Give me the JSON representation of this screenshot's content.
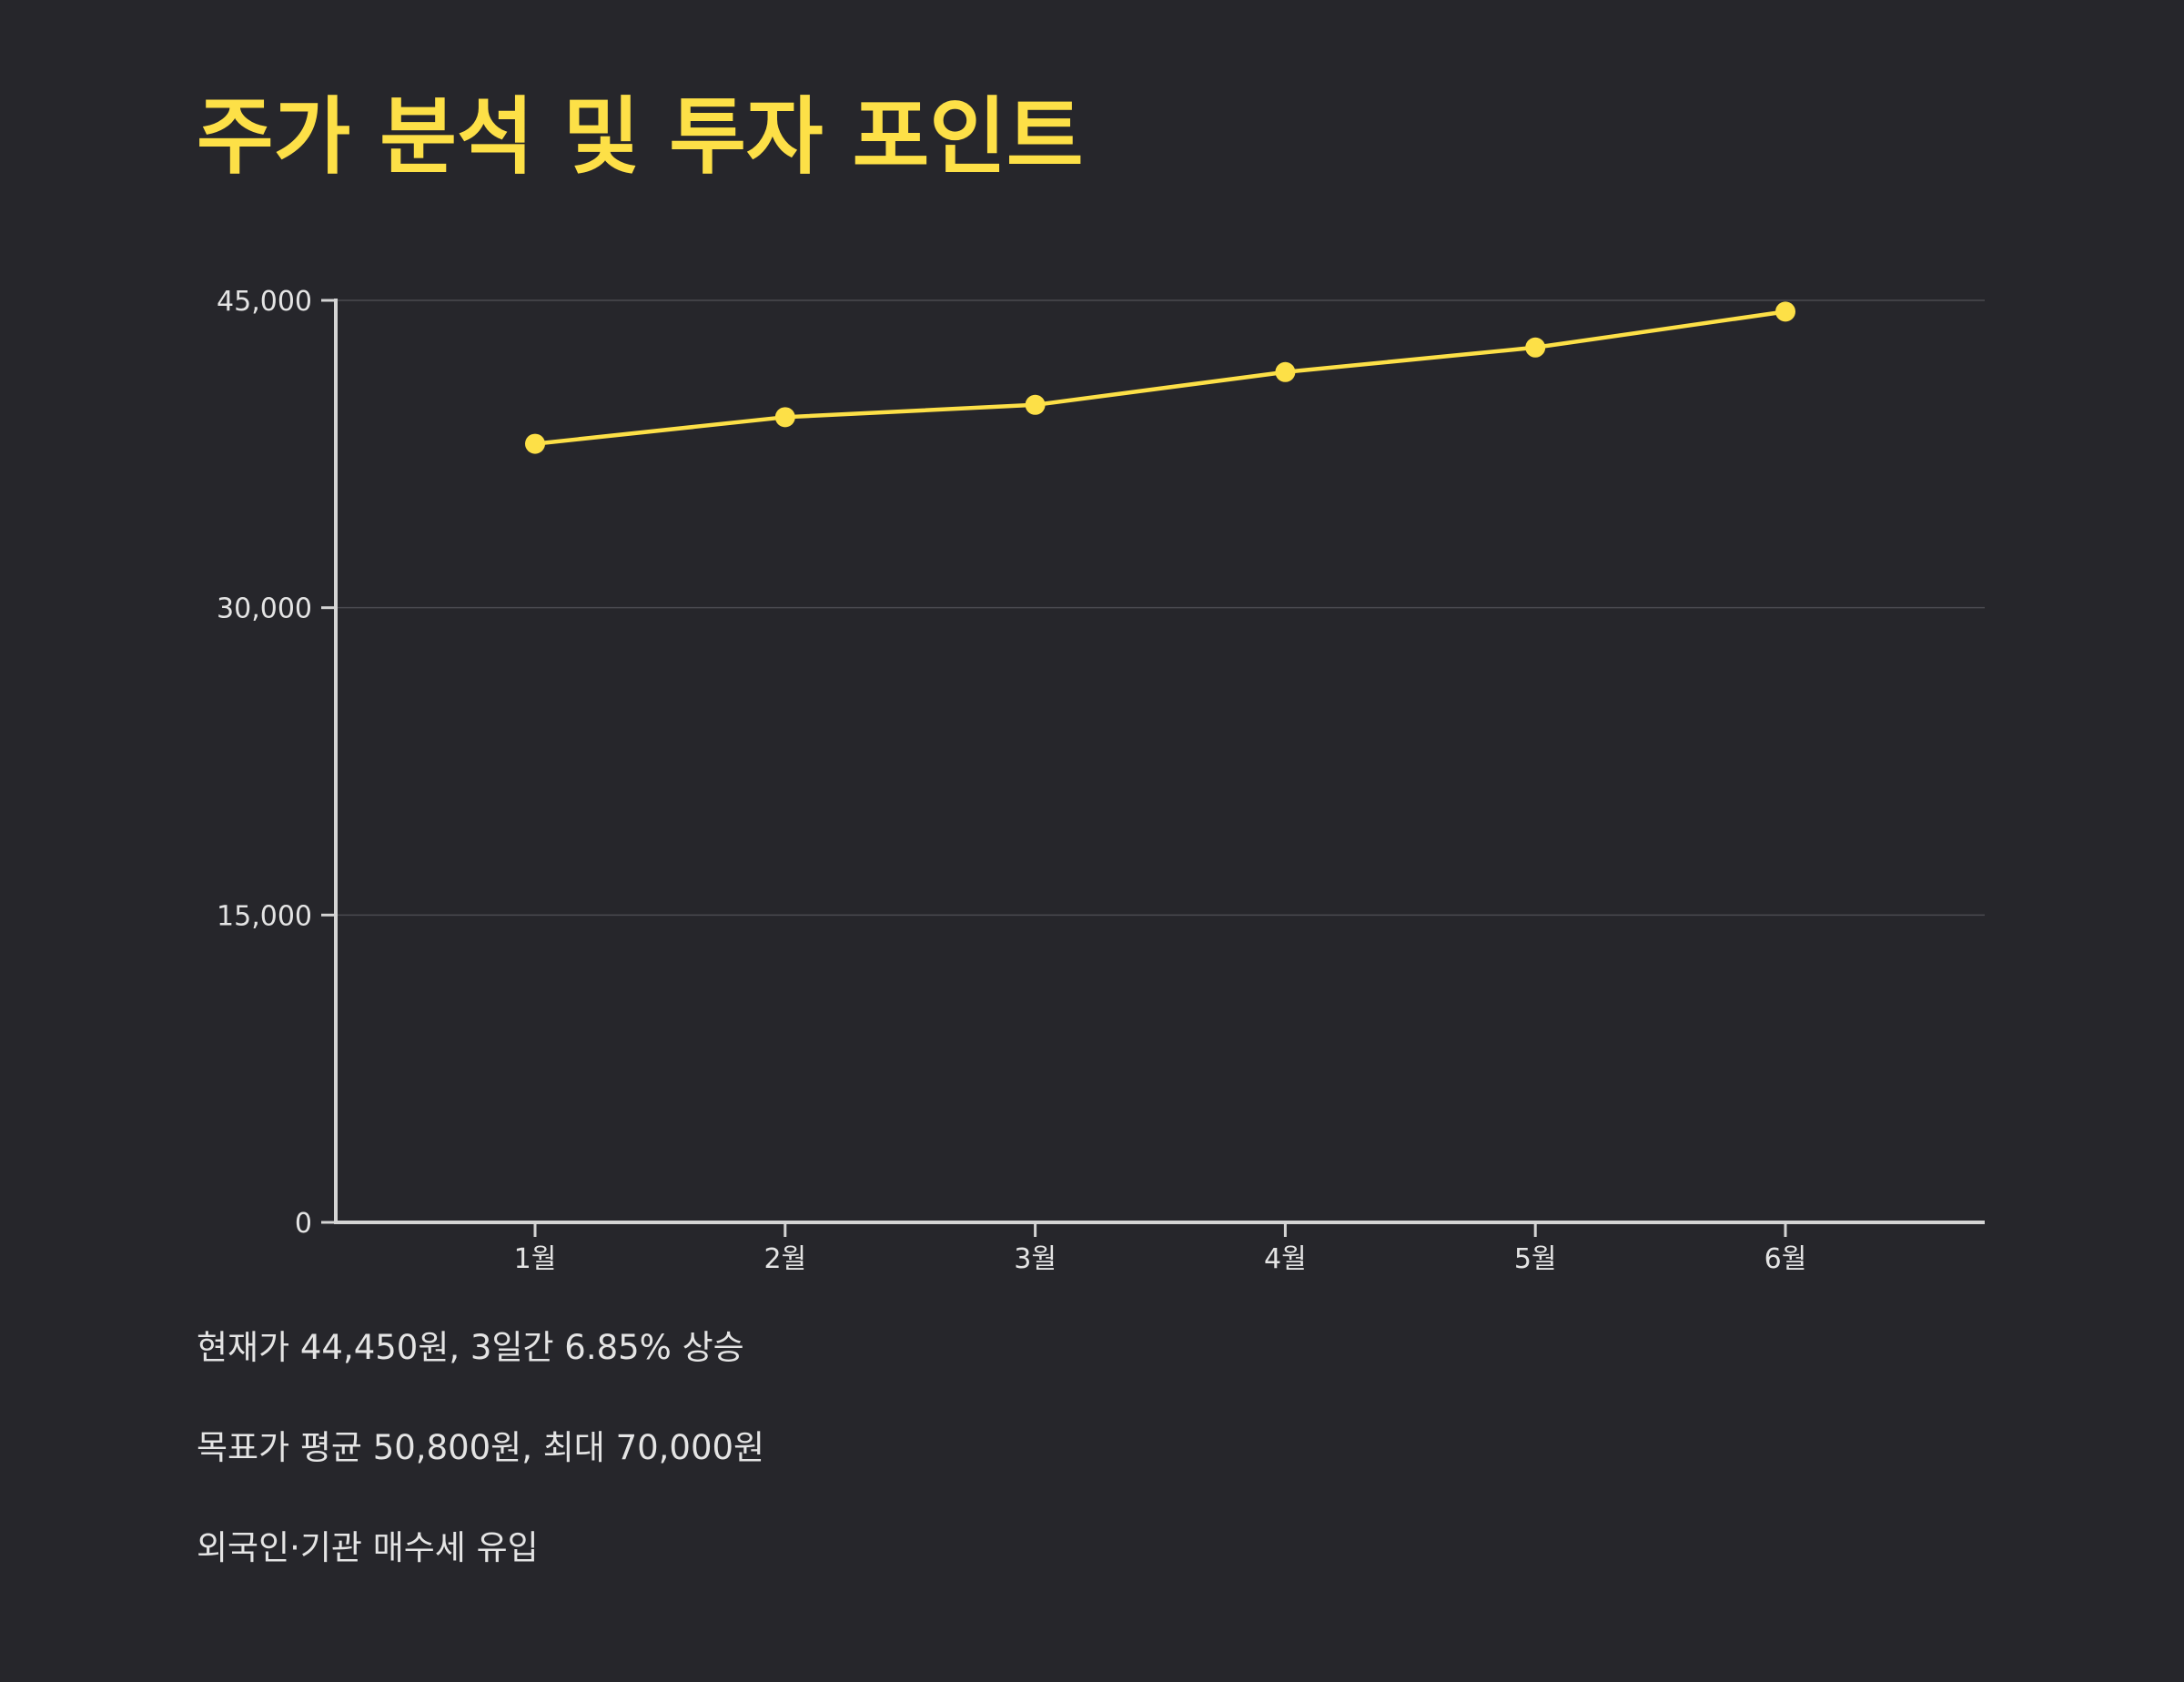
{
  "title": "주가 분석 및 투자 포인트",
  "colors": {
    "background": "#26262b",
    "accent": "#fde047",
    "text": "#e4e4e4",
    "axis": "#d4d4d4",
    "grid": "#4a4a50"
  },
  "chart_data": {
    "type": "line",
    "categories": [
      "1월",
      "2월",
      "3월",
      "4월",
      "5월",
      "6월"
    ],
    "series": [
      {
        "values": [
          38000,
          39300,
          39900,
          41500,
          42700,
          44450
        ]
      }
    ],
    "ylim": [
      0,
      45000
    ],
    "yticks": [
      0,
      15000,
      30000,
      45000
    ],
    "ytick_labels": [
      "0",
      "15,000",
      "30,000",
      "45,000"
    ],
    "grid": true,
    "legend": "none",
    "title": "",
    "xlabel": "",
    "ylabel": ""
  },
  "bullets": [
    "현재가 44,450원, 3일간 6.85% 상승",
    "목표가 평균 50,800원, 최대 70,000원",
    "외국인·기관 매수세 유입"
  ]
}
